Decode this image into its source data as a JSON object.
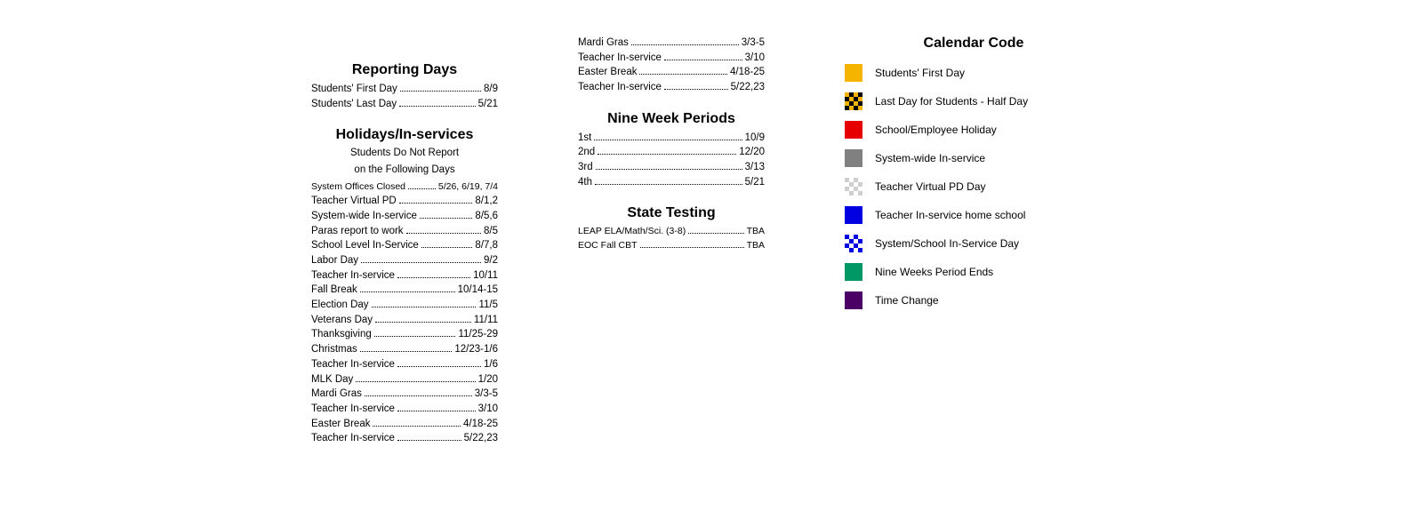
{
  "col1": {
    "reporting": {
      "heading": "Reporting Days",
      "items": [
        {
          "label": "Students' First Day",
          "val": "8/9"
        },
        {
          "label": "Students' Last Day",
          "val": "5/21"
        }
      ]
    },
    "holidays": {
      "heading": "Holidays/In-services",
      "sub1": "Students Do Not Report",
      "sub2": "on the Following Days",
      "items": [
        {
          "label": "System Offices Closed",
          "val": "5/26, 6/19, 7/4",
          "small": true
        },
        {
          "label": "Teacher Virtual PD",
          "val": "8/1,2"
        },
        {
          "label": "System-wide In-service",
          "val": "8/5,6"
        },
        {
          "label": "Paras report to work",
          "val": "8/5"
        },
        {
          "label": "School Level In-Service",
          "val": "8/7,8"
        },
        {
          "label": "Labor Day",
          "val": "9/2"
        },
        {
          "label": "Teacher In-service",
          "val": "10/11"
        },
        {
          "label": "Fall Break",
          "val": "10/14-15"
        },
        {
          "label": "Election Day",
          "val": "11/5"
        },
        {
          "label": "Veterans Day",
          "val": "11/11"
        },
        {
          "label": "Thanksgiving",
          "val": "11/25-29"
        },
        {
          "label": "Christmas",
          "val": "12/23-1/6"
        },
        {
          "label": "Teacher In-service",
          "val": "1/6"
        },
        {
          "label": "MLK Day",
          "val": "1/20"
        },
        {
          "label": "Mardi Gras",
          "val": "3/3-5"
        },
        {
          "label": "Teacher In-service",
          "val": "3/10"
        },
        {
          "label": "Easter Break",
          "val": "4/18-25"
        },
        {
          "label": "Teacher In-service",
          "val": "5/22,23"
        }
      ]
    }
  },
  "col2": {
    "cont": [
      {
        "label": "Mardi Gras",
        "val": "3/3-5"
      },
      {
        "label": "Teacher In-service",
        "val": "3/10"
      },
      {
        "label": "Easter Break",
        "val": "4/18-25"
      },
      {
        "label": "Teacher In-service",
        "val": "5/22,23"
      }
    ],
    "nine": {
      "heading": "Nine Week Periods",
      "items": [
        {
          "label": "1st",
          "val": "10/9"
        },
        {
          "label": "2nd",
          "val": "12/20"
        },
        {
          "label": "3rd",
          "val": "3/13"
        },
        {
          "label": "4th",
          "val": "5/21"
        }
      ]
    },
    "testing": {
      "heading": "State Testing",
      "items": [
        {
          "label": "LEAP ELA/Math/Sci. (3-8)",
          "val": "TBA",
          "small": true
        },
        {
          "label": "EOC Fall CBT",
          "val": "TBA",
          "small": true
        }
      ]
    }
  },
  "col3": {
    "heading": "Calendar Code",
    "items": [
      {
        "label": "Students' First Day",
        "bg": "#f5b400",
        "pattern": "solid"
      },
      {
        "label": "Last Day for Students - Half Day",
        "bg": "#f5b400",
        "pattern": "checker",
        "alt": "#000000"
      },
      {
        "label": "School/Employee Holiday",
        "bg": "#e60000",
        "pattern": "solid"
      },
      {
        "label": "System-wide In-service",
        "bg": "#808080",
        "pattern": "solid"
      },
      {
        "label": "Teacher Virtual PD Day",
        "bg": "#cfcfcf",
        "pattern": "checker",
        "alt": "#ffffff"
      },
      {
        "label": "Teacher In-service home school",
        "bg": "#0000e0",
        "pattern": "solid"
      },
      {
        "label": "System/School In-Service Day",
        "bg": "#0000e0",
        "pattern": "checker",
        "alt": "#ffffff"
      },
      {
        "label": "Nine Weeks Period Ends",
        "bg": "#009966",
        "pattern": "solid"
      },
      {
        "label": "Time Change",
        "bg": "#4b0066",
        "pattern": "solid"
      }
    ]
  }
}
